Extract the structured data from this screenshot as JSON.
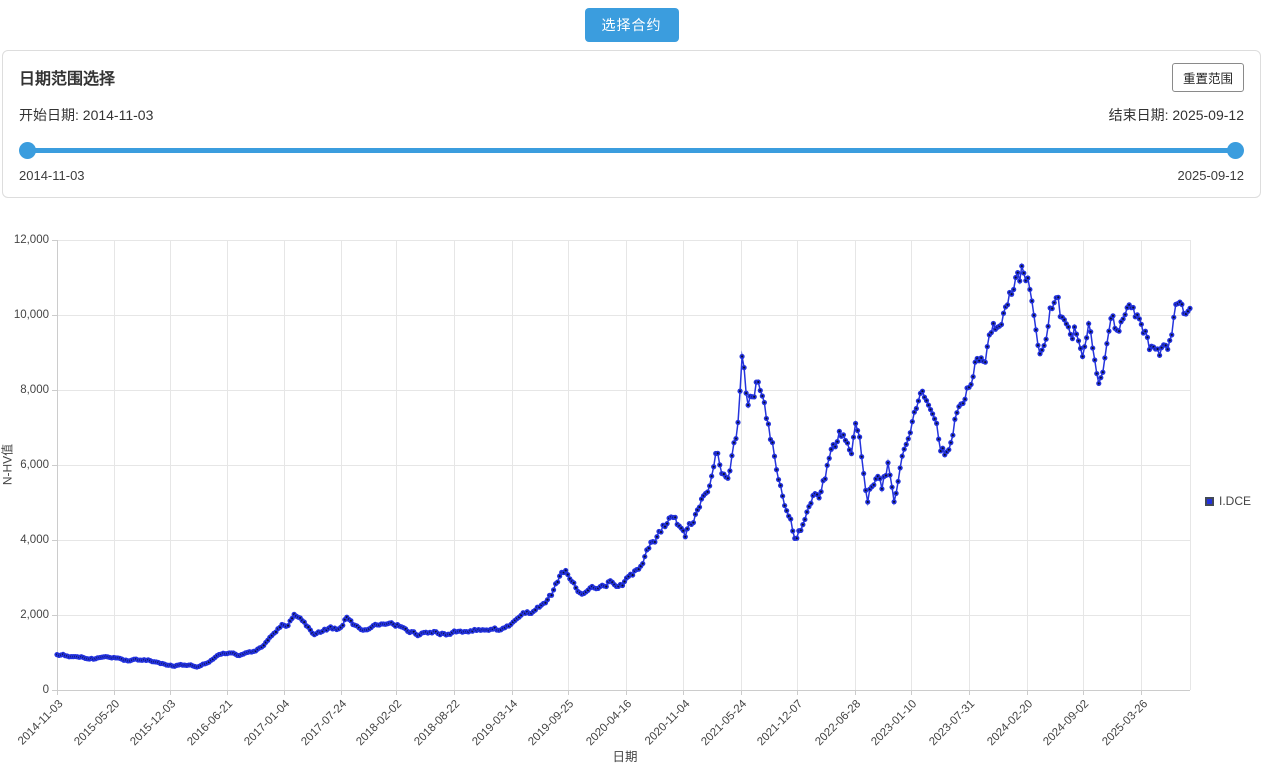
{
  "toolbar": {
    "select_contract_label": "选择合约",
    "accent_color": "#3b9dde"
  },
  "date_panel": {
    "title": "日期范围选择",
    "reset_button_label": "重置范围",
    "start_label": "开始日期: 2014-11-03",
    "end_label": "结束日期: 2025-09-12",
    "slider": {
      "min_label": "2014-11-03",
      "max_label": "2025-09-12",
      "color": "#3b9dde"
    }
  },
  "chart_data": {
    "type": "scatter",
    "mode": "lines+markers",
    "title": "",
    "xlabel": "日期",
    "ylabel": "N-HV值",
    "x_range": [
      "2014-11-03",
      "2025-09-12"
    ],
    "ylim": [
      0,
      12000
    ],
    "grid": true,
    "y_tick_values": [
      0,
      2000,
      4000,
      6000,
      8000,
      10000,
      12000
    ],
    "y_tick_labels": [
      "0",
      "2,000",
      "4,000",
      "6,000",
      "8,000",
      "10,000",
      "12,000"
    ],
    "x_tick_labels": [
      "2014-11-03",
      "2015-05-20",
      "2015-12-03",
      "2016-06-21",
      "2017-01-04",
      "2017-07-24",
      "2018-02-02",
      "2018-08-22",
      "2019-03-14",
      "2019-09-25",
      "2020-04-16",
      "2020-11-04",
      "2021-05-24",
      "2021-12-07",
      "2022-06-28",
      "2023-01-10",
      "2023-07-31",
      "2024-02-20",
      "2024-09-02",
      "2025-03-26"
    ],
    "legend": [
      {
        "name": "I.DCE",
        "marker_color": "#2231dd",
        "marker_border": "#424957"
      }
    ],
    "series": [
      {
        "name": "I.DCE",
        "line_color": "#2534dd",
        "marker_color": "#2231dd",
        "marker_core_color": "#0a0f2a",
        "anchors": [
          [
            0.0,
            950
          ],
          [
            0.015,
            900
          ],
          [
            0.033,
            830
          ],
          [
            0.047,
            870
          ],
          [
            0.061,
            790
          ],
          [
            0.079,
            810
          ],
          [
            0.093,
            700
          ],
          [
            0.102,
            640
          ],
          [
            0.116,
            670
          ],
          [
            0.125,
            620
          ],
          [
            0.134,
            760
          ],
          [
            0.142,
            950
          ],
          [
            0.151,
            1010
          ],
          [
            0.16,
            920
          ],
          [
            0.171,
            1000
          ],
          [
            0.18,
            1120
          ],
          [
            0.19,
            1450
          ],
          [
            0.199,
            1800
          ],
          [
            0.204,
            1760
          ],
          [
            0.21,
            2000
          ],
          [
            0.217,
            1850
          ],
          [
            0.227,
            1500
          ],
          [
            0.24,
            1660
          ],
          [
            0.25,
            1610
          ],
          [
            0.256,
            1950
          ],
          [
            0.263,
            1700
          ],
          [
            0.273,
            1620
          ],
          [
            0.284,
            1740
          ],
          [
            0.3,
            1740
          ],
          [
            0.311,
            1580
          ],
          [
            0.32,
            1460
          ],
          [
            0.332,
            1570
          ],
          [
            0.342,
            1480
          ],
          [
            0.355,
            1560
          ],
          [
            0.369,
            1610
          ],
          [
            0.383,
            1650
          ],
          [
            0.392,
            1610
          ],
          [
            0.403,
            1820
          ],
          [
            0.412,
            2010
          ],
          [
            0.421,
            2120
          ],
          [
            0.431,
            2260
          ],
          [
            0.438,
            2600
          ],
          [
            0.443,
            3000
          ],
          [
            0.449,
            3200
          ],
          [
            0.456,
            2800
          ],
          [
            0.462,
            2560
          ],
          [
            0.47,
            2720
          ],
          [
            0.479,
            2660
          ],
          [
            0.489,
            2910
          ],
          [
            0.498,
            2820
          ],
          [
            0.507,
            3020
          ],
          [
            0.516,
            3420
          ],
          [
            0.525,
            3900
          ],
          [
            0.535,
            4300
          ],
          [
            0.544,
            4660
          ],
          [
            0.548,
            4420
          ],
          [
            0.554,
            4120
          ],
          [
            0.563,
            4620
          ],
          [
            0.572,
            5350
          ],
          [
            0.578,
            5650
          ],
          [
            0.582,
            6500
          ],
          [
            0.587,
            5850
          ],
          [
            0.591,
            5450
          ],
          [
            0.596,
            6250
          ],
          [
            0.601,
            7000
          ],
          [
            0.605,
            8850
          ],
          [
            0.609,
            7650
          ],
          [
            0.614,
            8050
          ],
          [
            0.618,
            8260
          ],
          [
            0.624,
            7500
          ],
          [
            0.629,
            6800
          ],
          [
            0.634,
            6150
          ],
          [
            0.638,
            5550
          ],
          [
            0.643,
            4950
          ],
          [
            0.648,
            4500
          ],
          [
            0.652,
            3870
          ],
          [
            0.659,
            4450
          ],
          [
            0.668,
            5350
          ],
          [
            0.673,
            5050
          ],
          [
            0.683,
            6350
          ],
          [
            0.692,
            6900
          ],
          [
            0.701,
            6500
          ],
          [
            0.705,
            7000
          ],
          [
            0.71,
            6300
          ],
          [
            0.715,
            5120
          ],
          [
            0.723,
            5800
          ],
          [
            0.728,
            5420
          ],
          [
            0.734,
            6000
          ],
          [
            0.739,
            5030
          ],
          [
            0.747,
            6350
          ],
          [
            0.752,
            7050
          ],
          [
            0.76,
            7550
          ],
          [
            0.765,
            7780
          ],
          [
            0.774,
            7000
          ],
          [
            0.78,
            6500
          ],
          [
            0.787,
            6300
          ],
          [
            0.796,
            7550
          ],
          [
            0.804,
            8050
          ],
          [
            0.811,
            8700
          ],
          [
            0.82,
            9100
          ],
          [
            0.829,
            9620
          ],
          [
            0.839,
            10400
          ],
          [
            0.848,
            10850
          ],
          [
            0.853,
            11250
          ],
          [
            0.858,
            10900
          ],
          [
            0.862,
            10450
          ],
          [
            0.867,
            8750
          ],
          [
            0.872,
            9350
          ],
          [
            0.881,
            10600
          ],
          [
            0.885,
            10100
          ],
          [
            0.89,
            9600
          ],
          [
            0.895,
            9320
          ],
          [
            0.899,
            9550
          ],
          [
            0.904,
            8750
          ],
          [
            0.91,
            9800
          ],
          [
            0.914,
            9300
          ],
          [
            0.919,
            7920
          ],
          [
            0.925,
            9050
          ],
          [
            0.931,
            9700
          ],
          [
            0.936,
            9350
          ],
          [
            0.942,
            9650
          ],
          [
            0.947,
            9950
          ],
          [
            0.952,
            10100
          ],
          [
            0.956,
            9700
          ],
          [
            0.961,
            9480
          ],
          [
            0.966,
            9200
          ],
          [
            0.973,
            9120
          ],
          [
            0.978,
            9300
          ],
          [
            0.983,
            9220
          ],
          [
            0.987,
            10250
          ],
          [
            0.992,
            10450
          ],
          [
            0.995,
            10150
          ],
          [
            1.0,
            10420
          ]
        ]
      }
    ],
    "colors": {
      "grid": "#e6e6e6",
      "axis_line": "#cccccc",
      "tick_text": "#444444"
    }
  }
}
